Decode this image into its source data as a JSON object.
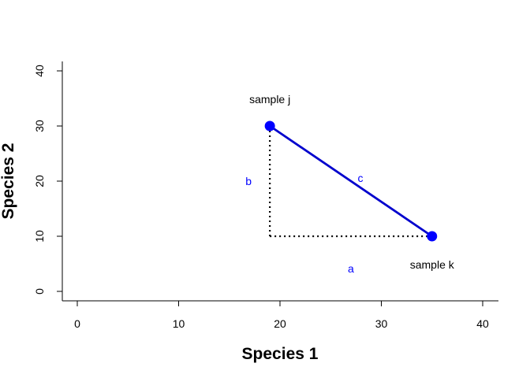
{
  "chart_data": {
    "type": "scatter",
    "title": "",
    "xlabel": "Species 1",
    "ylabel": "Species 2",
    "xlim": [
      0,
      40
    ],
    "ylim": [
      0,
      40
    ],
    "x_ticks": [
      0,
      10,
      20,
      30,
      40
    ],
    "y_ticks": [
      0,
      10,
      20,
      30,
      40
    ],
    "grid": false,
    "points": [
      {
        "label": "sample j",
        "x": 19,
        "y": 30
      },
      {
        "label": "sample k",
        "x": 35,
        "y": 10
      }
    ],
    "segments": [
      {
        "label": "a",
        "from": [
          19,
          10
        ],
        "to": [
          35,
          10
        ],
        "style": "dotted"
      },
      {
        "label": "b",
        "from": [
          19,
          30
        ],
        "to": [
          19,
          10
        ],
        "style": "dotted"
      },
      {
        "label": "c",
        "from": [
          19,
          30
        ],
        "to": [
          35,
          10
        ],
        "style": "solid"
      }
    ],
    "colors": {
      "points": "#0000ff",
      "line_c": "#0000cd",
      "segment_labels": "#0000ff",
      "dotted": "#000000"
    }
  }
}
